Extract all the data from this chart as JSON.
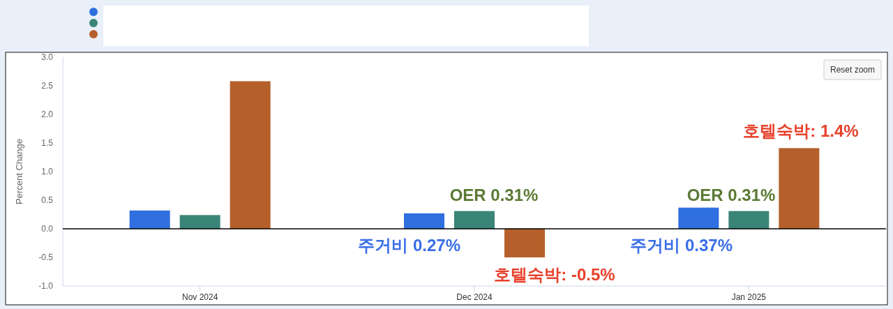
{
  "chart_data": {
    "type": "bar",
    "ylabel": "Percent Change",
    "categories": [
      "Nov 2024",
      "Dec 2024",
      "Jan 2025"
    ],
    "series": [
      {
        "color": "#2f6fdf",
        "values": [
          0.32,
          0.27,
          0.37
        ]
      },
      {
        "color": "#3a8577",
        "values": [
          0.24,
          0.31,
          0.31
        ]
      },
      {
        "color": "#b5602a",
        "values": [
          2.58,
          -0.5,
          1.41
        ]
      }
    ],
    "ylim": [
      -1.0,
      3.0
    ],
    "yticks": [
      {
        "value": -1.0,
        "label": "-1.0"
      },
      {
        "value": -0.5,
        "label": "-0.5"
      },
      {
        "value": 0,
        "label": "0.0"
      },
      {
        "value": 0.5,
        "label": "0.5"
      },
      {
        "value": 1.0,
        "label": "1.0"
      },
      {
        "value": 1.5,
        "label": "1.5"
      },
      {
        "value": 2.0,
        "label": "2.0"
      },
      {
        "value": 2.5,
        "label": "2.5"
      },
      {
        "value": 3.0,
        "label": "3.0"
      }
    ],
    "grid": false,
    "ref_lines": [
      {
        "axis": "y",
        "value": 0,
        "color": "#000000"
      }
    ],
    "annotations": [
      "주거비 0.27%",
      "OER 0.31%",
      "호텔숙박: -0.5%",
      "주거비 0.37%",
      "OER 0.31%",
      "호텔숙박: 1.4%",
      "Reset zoom"
    ]
  }
}
